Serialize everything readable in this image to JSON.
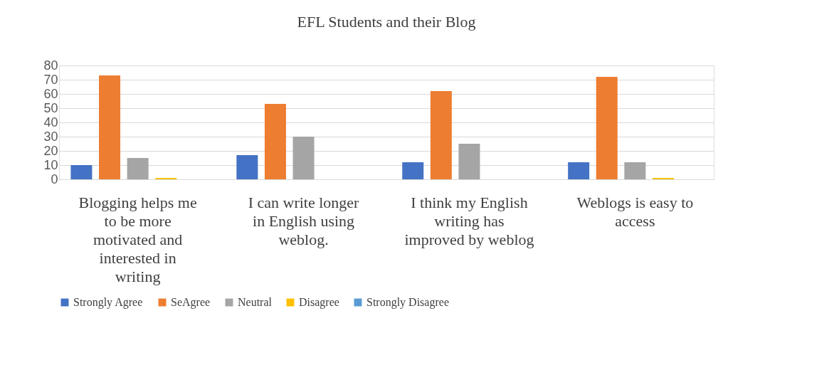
{
  "chart_data": {
    "type": "bar",
    "title": "EFL Students and their Blog",
    "categories": [
      "Blogging helps me to be more motivated and interested in writing",
      "I can write longer in English using weblog.",
      "I think my English writing has improved by weblog",
      "Weblogs is easy to access"
    ],
    "series": [
      {
        "name": "Strongly Agree",
        "color": "#4472c4",
        "values": [
          10,
          17,
          12,
          12
        ]
      },
      {
        "name": "SeAgree",
        "color": "#ed7d31",
        "values": [
          73,
          53,
          62,
          72
        ]
      },
      {
        "name": "Neutral",
        "color": "#a5a5a5",
        "values": [
          15,
          30,
          25,
          12
        ]
      },
      {
        "name": "Disagree",
        "color": "#ffc000",
        "values": [
          1,
          0,
          0,
          1
        ]
      },
      {
        "name": "Strongly Disagree",
        "color": "#5b9bd5",
        "values": [
          0,
          0,
          0,
          0
        ]
      }
    ],
    "ylim": [
      0,
      80
    ],
    "yticks": [
      0,
      10,
      20,
      30,
      40,
      50,
      60,
      70,
      80
    ],
    "grid": "y",
    "legend": "bottom"
  }
}
